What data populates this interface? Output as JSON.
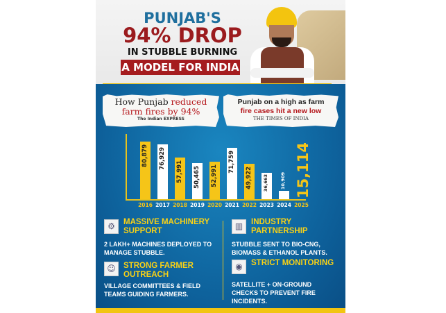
{
  "header": {
    "line1": "PUNJAB'S",
    "line2": "94% DROP",
    "line3": "IN STUBBLE BURNING",
    "banner": "A MODEL FOR INDIA"
  },
  "clippings": [
    {
      "headline_dark": "How Punjab ",
      "headline_red": "reduced",
      "headline_red2": "farm fires by 94%",
      "source": "The Indian EXPRESS"
    },
    {
      "headline_dark": "Punjab on a high as farm",
      "headline_red": "fire cases hit a new low",
      "source": "THE TIMES OF INDIA"
    }
  ],
  "chart_data": {
    "type": "bar",
    "categories": [
      "2016",
      "2017",
      "2018",
      "2019",
      "2020",
      "2021",
      "2022",
      "2023",
      "2024",
      "2025"
    ],
    "values": [
      80879,
      76929,
      57991,
      50465,
      52991,
      71759,
      49922,
      36663,
      10909,
      15114
    ],
    "labels": [
      "80,879",
      "76,929",
      "57,991",
      "50,465",
      "52,991",
      "71,759",
      "49,922",
      "36,663",
      "10,909",
      "15,114"
    ],
    "colors": [
      "#f5c518",
      "#ffffff",
      "#f5c518",
      "#ffffff",
      "#f5c518",
      "#ffffff",
      "#f5c518",
      "#ffffff",
      "#ffffff",
      "#f5c518"
    ],
    "title": "",
    "xlabel": "",
    "ylabel": ""
  },
  "features": [
    {
      "icon": "machinery-icon",
      "title": "MASSIVE MACHINERY SUPPORT",
      "body": "2 LAKH+ MACHINES DEPLOYED TO MANAGE STUBBLE."
    },
    {
      "icon": "farmer-icon",
      "title": "STRONG FARMER OUTREACH",
      "body": "VILLAGE COMMITTEES & FIELD TEAMS GUIDING FARMERS."
    },
    {
      "icon": "factory-icon",
      "title": "INDUSTRY PARTNERSHIP",
      "body": "STUBBLE SENT TO BIO-CNG, BIOMASS & ETHANOL PLANTS."
    },
    {
      "icon": "satellite-eye-icon",
      "title": "STRICT MONITORING",
      "body": "SATELLITE + ON-GROUND CHECKS TO PREVENT FIRE INCIDENTS."
    }
  ]
}
